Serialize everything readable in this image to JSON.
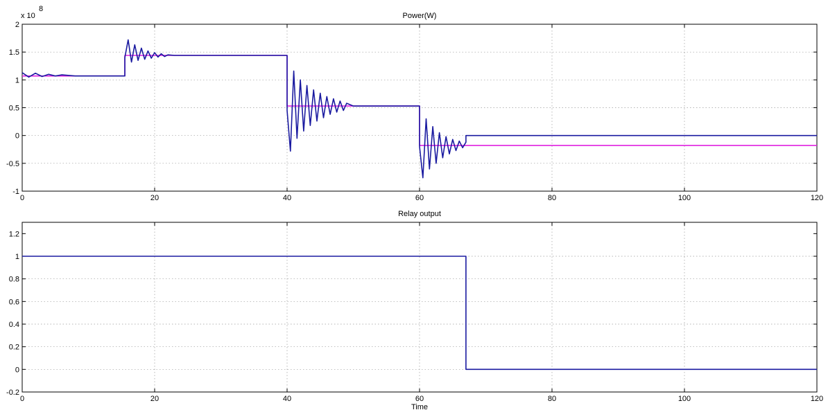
{
  "chart_data": [
    {
      "type": "line",
      "title": "Power(W)",
      "xlabel": "",
      "ylabel": "",
      "exponent_label": "x 10",
      "exponent_power": "8",
      "xlim": [
        0,
        120
      ],
      "ylim": [
        -1,
        2
      ],
      "y_scale_factor": 100000000,
      "xticks": [
        0,
        20,
        40,
        60,
        80,
        100,
        120
      ],
      "xtick_labels": [
        "0",
        "20",
        "40",
        "60",
        "80",
        "100",
        "120"
      ],
      "yticks": [
        -1,
        -0.5,
        0,
        0.5,
        1,
        1.5,
        2
      ],
      "ytick_labels": [
        "-1",
        "-0.5",
        "0",
        "0.5",
        "1",
        "1.5",
        "2"
      ],
      "grid": true,
      "series": [
        {
          "color": "#e020e0",
          "x": [
            0,
            15.5,
            15.5,
            40,
            40,
            60,
            60,
            67,
            67,
            120
          ],
          "y": [
            1.07,
            1.07,
            1.44,
            1.44,
            0.53,
            0.53,
            -0.18,
            -0.18,
            -0.18,
            -0.18
          ]
        },
        {
          "color": "#1a1aa0",
          "x": [
            0,
            1,
            2,
            3,
            4,
            5,
            6,
            8,
            10,
            12,
            14,
            15.5,
            15.5,
            16,
            16.5,
            17,
            17.5,
            18,
            18.5,
            19,
            19.5,
            20,
            20.5,
            21,
            21.5,
            22,
            23,
            24,
            26,
            28,
            30,
            35,
            40,
            40,
            40.5,
            41,
            41.5,
            42,
            42.5,
            43,
            43.5,
            44,
            44.5,
            45,
            45.5,
            46,
            46.5,
            47,
            47.5,
            48,
            48.5,
            49,
            50,
            51,
            52,
            55,
            60,
            60,
            60.5,
            61,
            61.5,
            62,
            62.5,
            63,
            63.5,
            64,
            64.5,
            65,
            65.5,
            66,
            66.5,
            67,
            67,
            80,
            100,
            120
          ],
          "y": [
            1.13,
            1.05,
            1.12,
            1.06,
            1.1,
            1.07,
            1.09,
            1.07,
            1.07,
            1.07,
            1.07,
            1.07,
            1.4,
            1.72,
            1.32,
            1.63,
            1.35,
            1.57,
            1.37,
            1.52,
            1.39,
            1.49,
            1.41,
            1.47,
            1.42,
            1.45,
            1.44,
            1.44,
            1.44,
            1.44,
            1.44,
            1.44,
            1.44,
            0.45,
            -0.28,
            1.16,
            -0.05,
            1.0,
            0.08,
            0.9,
            0.18,
            0.82,
            0.26,
            0.76,
            0.32,
            0.7,
            0.38,
            0.66,
            0.42,
            0.62,
            0.45,
            0.58,
            0.53,
            0.53,
            0.53,
            0.53,
            0.53,
            -0.2,
            -0.76,
            0.3,
            -0.6,
            0.16,
            -0.5,
            0.05,
            -0.4,
            -0.02,
            -0.33,
            -0.07,
            -0.27,
            -0.1,
            -0.22,
            -0.12,
            0.0,
            0.0,
            0.0,
            0.0
          ]
        }
      ]
    },
    {
      "type": "line",
      "title": "Relay output",
      "xlabel": "Time",
      "ylabel": "",
      "xlim": [
        0,
        120
      ],
      "ylim": [
        -0.2,
        1.3
      ],
      "xticks": [
        0,
        20,
        40,
        60,
        80,
        100,
        120
      ],
      "xtick_labels": [
        "0",
        "20",
        "40",
        "60",
        "80",
        "100",
        "120"
      ],
      "yticks": [
        -0.2,
        0,
        0.2,
        0.4,
        0.6,
        0.8,
        1,
        1.2
      ],
      "ytick_labels": [
        "-0.2",
        "0",
        "0.2",
        "0.4",
        "0.6",
        "0.8",
        "1",
        "1.2"
      ],
      "grid": true,
      "series": [
        {
          "color": "#1a1aa0",
          "x": [
            0,
            67,
            67,
            120
          ],
          "y": [
            1,
            1,
            0,
            0
          ]
        }
      ]
    }
  ]
}
